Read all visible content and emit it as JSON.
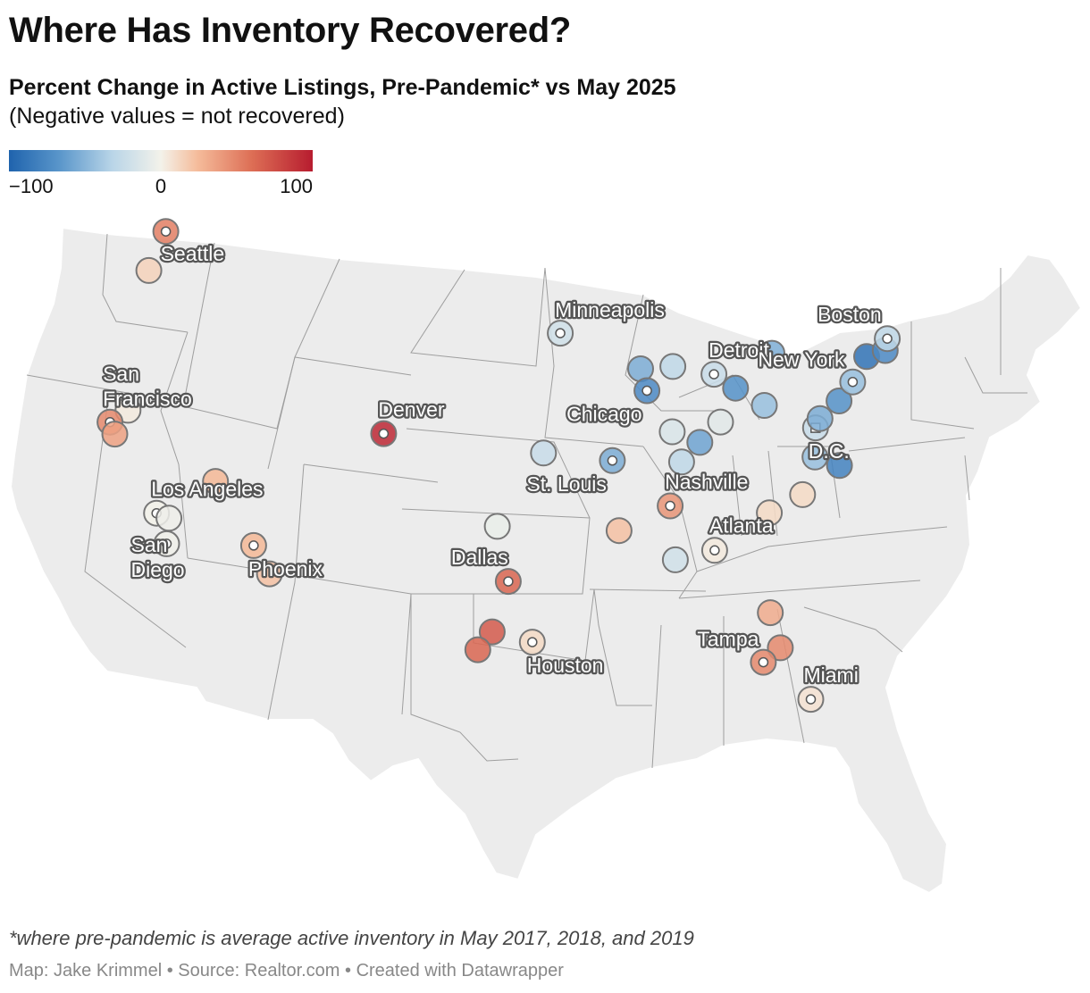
{
  "title": "Where Has Inventory Recovered?",
  "subtitle": "Percent Change in Active Listings, Pre-Pandemic* vs May 2025",
  "note": "(Negative values = not recovered)",
  "legend": {
    "min_label": "−100",
    "mid_label": "0",
    "max_label": "100",
    "colors": [
      "#1f63ad",
      "#5b97cb",
      "#b9d5e8",
      "#f3f2ea",
      "#f5bc9b",
      "#dd6e55",
      "#b71c2f"
    ]
  },
  "footnote": "*where pre-pandemic is average active inventory in May 2017, 2018, and 2019",
  "byline": "Map: Jake Krimmel • Source: Realtor.com • Created with Datawrapper",
  "labels": [
    {
      "key": "seattle",
      "lines": [
        "Seattle"
      ]
    },
    {
      "key": "san-francisco",
      "lines": [
        "San",
        "Francisco"
      ]
    },
    {
      "key": "los-angeles",
      "lines": [
        "Los Angeles"
      ]
    },
    {
      "key": "san-diego",
      "lines": [
        "San",
        "Diego"
      ]
    },
    {
      "key": "phoenix",
      "lines": [
        "Phoenix"
      ]
    },
    {
      "key": "denver",
      "lines": [
        "Denver"
      ]
    },
    {
      "key": "dallas",
      "lines": [
        "Dallas"
      ]
    },
    {
      "key": "houston",
      "lines": [
        "Houston"
      ]
    },
    {
      "key": "minneapolis",
      "lines": [
        "Minneapolis"
      ]
    },
    {
      "key": "chicago",
      "lines": [
        "Chicago"
      ]
    },
    {
      "key": "st-louis",
      "lines": [
        "St. Louis"
      ]
    },
    {
      "key": "detroit",
      "lines": [
        "Detroit"
      ]
    },
    {
      "key": "nashville",
      "lines": [
        "Nashville"
      ]
    },
    {
      "key": "atlanta",
      "lines": [
        "Atlanta"
      ]
    },
    {
      "key": "tampa",
      "lines": [
        "Tampa"
      ]
    },
    {
      "key": "miami",
      "lines": [
        "Miami"
      ]
    },
    {
      "key": "boston",
      "lines": [
        "Boston"
      ]
    },
    {
      "key": "new-york",
      "lines": [
        "New York"
      ]
    },
    {
      "key": "dc",
      "lines": [
        "D.C."
      ]
    }
  ],
  "chart_data": {
    "type": "scatter",
    "subtype": "bubble-map",
    "title": "Where Has Inventory Recovered?",
    "metric": "Percent Change in Active Listings, Pre-Pandemic* vs May 2025",
    "color_scale_range": [
      -100,
      100
    ],
    "points": [
      {
        "key": "seattle",
        "lon": -122.3,
        "lat": 47.6,
        "value": 60,
        "labeled": true
      },
      {
        "key": "portland",
        "lon": -122.7,
        "lat": 45.5,
        "value": 20,
        "labeled": false
      },
      {
        "key": "sacramento",
        "lon": -121.5,
        "lat": 38.6,
        "value": 5,
        "labeled": false
      },
      {
        "key": "san-francisco",
        "lon": -122.4,
        "lat": 37.8,
        "value": 55,
        "labeled": true
      },
      {
        "key": "san-jose",
        "lon": -121.9,
        "lat": 37.3,
        "value": 45,
        "labeled": false
      },
      {
        "key": "las-vegas",
        "lon": -115.1,
        "lat": 36.2,
        "value": 35,
        "labeled": false
      },
      {
        "key": "los-angeles",
        "lon": -118.2,
        "lat": 34.05,
        "value": 0,
        "labeled": true
      },
      {
        "key": "riverside",
        "lon": -117.4,
        "lat": 33.95,
        "value": -3,
        "labeled": false
      },
      {
        "key": "san-diego",
        "lon": -117.2,
        "lat": 32.7,
        "value": -2,
        "labeled": true
      },
      {
        "key": "phoenix",
        "lon": -112.1,
        "lat": 33.45,
        "value": 35,
        "labeled": true
      },
      {
        "key": "tucson",
        "lon": -110.9,
        "lat": 32.2,
        "value": 30,
        "labeled": false
      },
      {
        "key": "denver",
        "lon": -104.99,
        "lat": 39.74,
        "value": 95,
        "labeled": true
      },
      {
        "key": "oklahoma-city",
        "lon": -97.5,
        "lat": 35.5,
        "value": -5,
        "labeled": false
      },
      {
        "key": "dallas",
        "lon": -96.8,
        "lat": 32.8,
        "value": 70,
        "labeled": true
      },
      {
        "key": "austin",
        "lon": -97.7,
        "lat": 30.3,
        "value": 75,
        "labeled": false
      },
      {
        "key": "san-antonio",
        "lon": -98.5,
        "lat": 29.4,
        "value": 70,
        "labeled": false
      },
      {
        "key": "houston",
        "lon": -95.4,
        "lat": 29.8,
        "value": 15,
        "labeled": true
      },
      {
        "key": "kansas-city",
        "lon": -94.6,
        "lat": 39.1,
        "value": -25,
        "labeled": false
      },
      {
        "key": "minneapolis",
        "lon": -93.3,
        "lat": 44.98,
        "value": -20,
        "labeled": true
      },
      {
        "key": "milwaukee",
        "lon": -87.9,
        "lat": 43.0,
        "value": -55,
        "labeled": false
      },
      {
        "key": "chicago",
        "lon": -87.6,
        "lat": 41.9,
        "value": -75,
        "labeled": true
      },
      {
        "key": "grand-rapids",
        "lon": -85.7,
        "lat": 42.96,
        "value": -30,
        "labeled": false
      },
      {
        "key": "detroit",
        "lon": -83.0,
        "lat": 42.33,
        "value": -25,
        "labeled": true
      },
      {
        "key": "cleveland",
        "lon": -81.7,
        "lat": 41.5,
        "value": -70,
        "labeled": false
      },
      {
        "key": "buffalo",
        "lon": -78.9,
        "lat": 42.9,
        "value": -55,
        "labeled": false
      },
      {
        "key": "pittsburgh",
        "lon": -80.0,
        "lat": 40.44,
        "value": -45,
        "labeled": false
      },
      {
        "key": "columbus",
        "lon": -83.0,
        "lat": 39.96,
        "value": -10,
        "labeled": false
      },
      {
        "key": "indianapolis",
        "lon": -86.2,
        "lat": 39.77,
        "value": -15,
        "labeled": false
      },
      {
        "key": "cincinnati",
        "lon": -84.5,
        "lat": 39.1,
        "value": -60,
        "labeled": false
      },
      {
        "key": "louisville",
        "lon": -85.8,
        "lat": 38.25,
        "value": -30,
        "labeled": false
      },
      {
        "key": "st-louis",
        "lon": -90.2,
        "lat": 38.6,
        "value": -55,
        "labeled": true
      },
      {
        "key": "nashville",
        "lon": -86.8,
        "lat": 36.16,
        "value": 50,
        "labeled": true
      },
      {
        "key": "memphis",
        "lon": -90.05,
        "lat": 35.15,
        "value": 30,
        "labeled": false
      },
      {
        "key": "birmingham",
        "lon": -86.8,
        "lat": 33.5,
        "value": -20,
        "labeled": false
      },
      {
        "key": "atlanta",
        "lon": -84.4,
        "lat": 33.75,
        "value": 5,
        "labeled": true
      },
      {
        "key": "charlotte",
        "lon": -80.8,
        "lat": 35.2,
        "value": 15,
        "labeled": false
      },
      {
        "key": "raleigh",
        "lon": -78.6,
        "lat": 35.8,
        "value": 15,
        "labeled": false
      },
      {
        "key": "richmond",
        "lon": -77.4,
        "lat": 37.5,
        "value": -45,
        "labeled": false
      },
      {
        "key": "virginia-beach",
        "lon": -76.0,
        "lat": 36.85,
        "value": -80,
        "labeled": false
      },
      {
        "key": "dc",
        "lon": -77.0,
        "lat": 38.9,
        "value": -25,
        "labeled": true
      },
      {
        "key": "baltimore",
        "lon": -76.6,
        "lat": 39.3,
        "value": -55,
        "labeled": false
      },
      {
        "key": "philadelphia",
        "lon": -75.15,
        "lat": 39.95,
        "value": -70,
        "labeled": false
      },
      {
        "key": "new-york",
        "lon": -74.0,
        "lat": 40.71,
        "value": -45,
        "labeled": true
      },
      {
        "key": "hartford",
        "lon": -72.7,
        "lat": 41.76,
        "value": -90,
        "labeled": false
      },
      {
        "key": "providence",
        "lon": -71.4,
        "lat": 41.82,
        "value": -75,
        "labeled": false
      },
      {
        "key": "boston",
        "lon": -71.06,
        "lat": 42.36,
        "value": -30,
        "labeled": true
      },
      {
        "key": "jacksonville",
        "lon": -81.66,
        "lat": 30.33,
        "value": 40,
        "labeled": false
      },
      {
        "key": "orlando",
        "lon": -81.4,
        "lat": 28.54,
        "value": 55,
        "labeled": false
      },
      {
        "key": "tampa",
        "lon": -82.46,
        "lat": 27.95,
        "value": 55,
        "labeled": true
      },
      {
        "key": "miami",
        "lon": -80.19,
        "lat": 25.76,
        "value": 10,
        "labeled": true
      }
    ]
  }
}
